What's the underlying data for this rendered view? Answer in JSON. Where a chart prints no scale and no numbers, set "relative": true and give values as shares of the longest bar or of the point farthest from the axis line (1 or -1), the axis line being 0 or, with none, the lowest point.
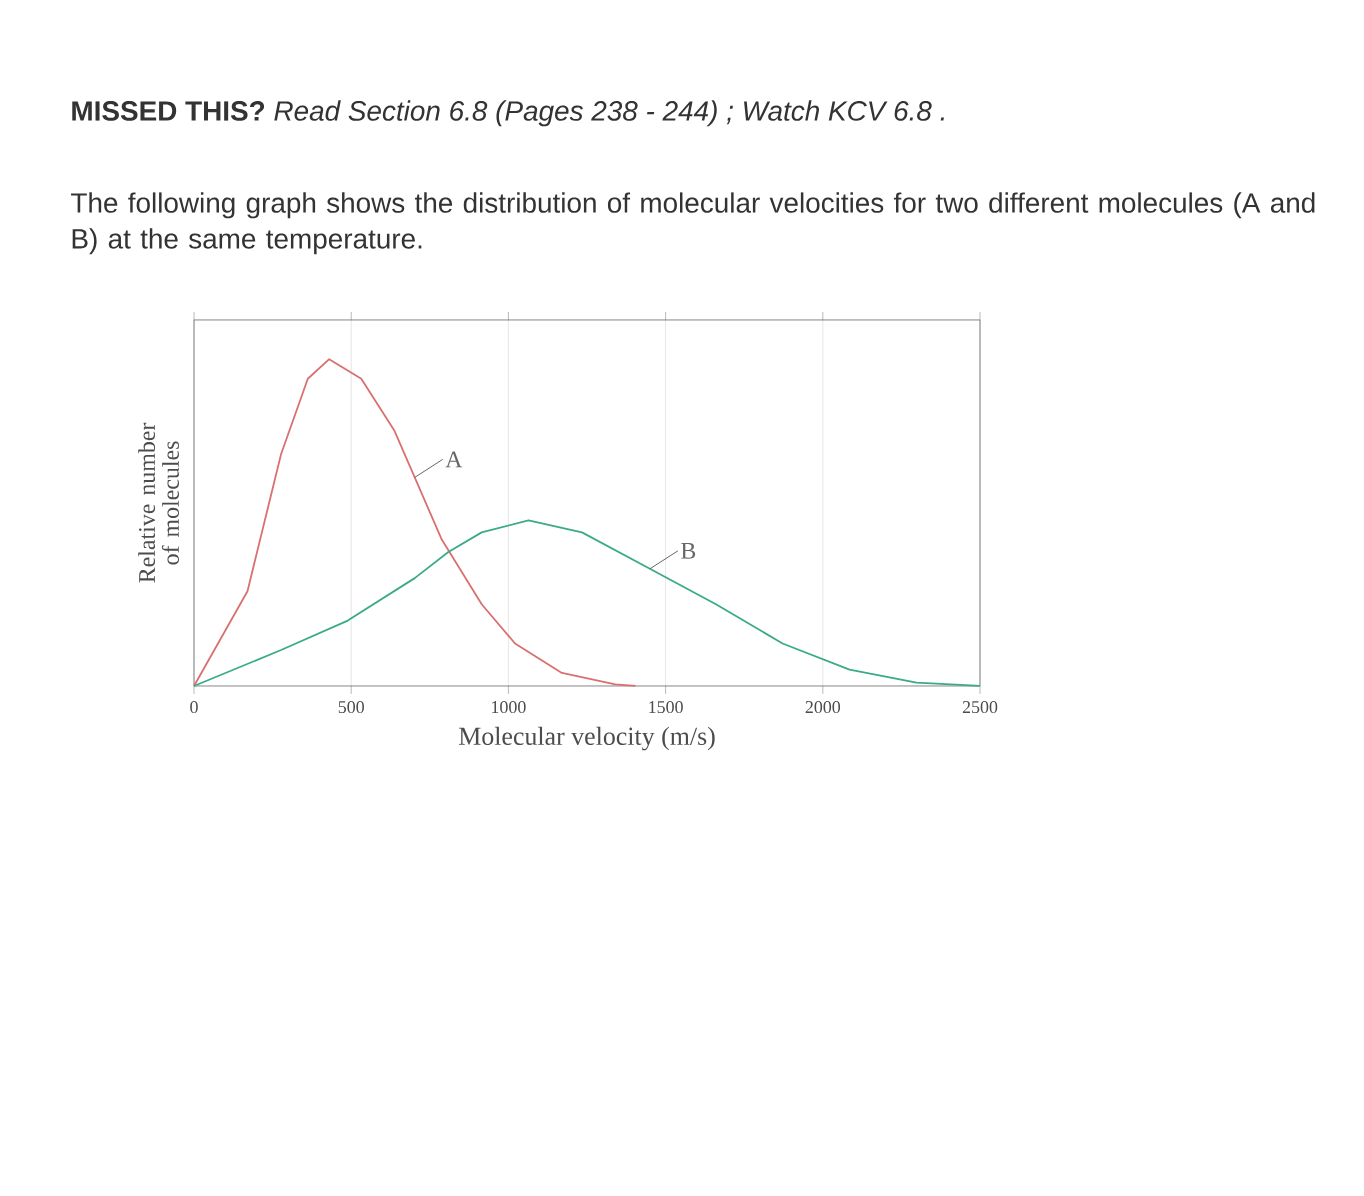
{
  "chart_data": {
    "type": "line",
    "title": "**MISSED THIS?** *Read Section 6.8 (Pages 238 - 244) ; Watch KCV 6.8 .*",
    "subtitle": "The following graph shows the distribution of molecular velocities for two different molecules (A and B) at the same temperature.",
    "xlabel": "Molecular velocity (m/s)",
    "ylabel": "Relative number of molecules",
    "relative": true,
    "xlim": [
      0,
      2500
    ],
    "xticks": [
      0,
      500,
      1000,
      1500,
      2000,
      2500
    ],
    "grid": "x",
    "series": [
      {
        "name": "A",
        "color": "#d9706f",
        "x": [
          0,
          170,
          277,
          362,
          430,
          532,
          638,
          787,
          915,
          1021,
          1170,
          1340,
          1404
        ],
        "values": [
          0,
          0.29,
          0.71,
          0.94,
          1,
          0.94,
          0.78,
          0.45,
          0.25,
          0.13,
          0.04,
          0.005,
          0
        ]
      },
      {
        "name": "B",
        "color": "#3aaa8a",
        "x": [
          0,
          277,
          489,
          702,
          809,
          915,
          1064,
          1234,
          1447,
          1660,
          1872,
          2085,
          2298,
          2500
        ],
        "values": [
          0,
          0.11,
          0.2,
          0.33,
          0.41,
          0.47,
          0.507,
          0.47,
          0.36,
          0.25,
          0.13,
          0.05,
          0.01,
          0
        ]
      }
    ]
  }
}
